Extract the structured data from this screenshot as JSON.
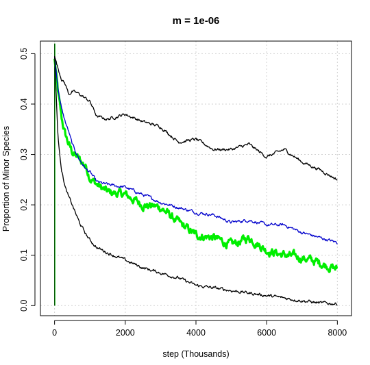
{
  "chart_data": {
    "type": "line",
    "title": "m = 1e-06",
    "xlabel": "step (Thousands)",
    "ylabel": "Proportion of Minor Species",
    "xlim": [
      -400,
      8400
    ],
    "ylim": [
      -0.02,
      0.525
    ],
    "xticks": [
      0,
      2000,
      4000,
      6000,
      8000
    ],
    "xtick_labels": [
      "0",
      "2000",
      "4000",
      "6000",
      "8000"
    ],
    "yticks": [
      0.0,
      0.1,
      0.2,
      0.3,
      0.4,
      0.5
    ],
    "ytick_labels": [
      "0.0",
      "0.1",
      "0.2",
      "0.3",
      "0.4",
      "0.5"
    ],
    "grid": true,
    "initial_vertical_line": {
      "x": 0,
      "y_range": [
        0,
        0.52
      ],
      "colors": [
        "#000000",
        "#00aa00"
      ]
    },
    "series": [
      {
        "color": "#000000",
        "x": [
          0,
          100,
          200,
          300,
          400,
          500,
          700,
          900,
          1000,
          1200,
          1500,
          2000,
          2500,
          3000,
          3500,
          4000,
          4500,
          5000,
          5500,
          6000,
          6500,
          7000,
          7500,
          8000
        ],
        "values": [
          0.495,
          0.47,
          0.45,
          0.44,
          0.42,
          0.425,
          0.42,
          0.41,
          0.405,
          0.375,
          0.37,
          0.38,
          0.365,
          0.355,
          0.325,
          0.33,
          0.31,
          0.31,
          0.32,
          0.295,
          0.31,
          0.285,
          0.27,
          0.25
        ]
      },
      {
        "color": "#0000cc",
        "x": [
          0,
          100,
          200,
          300,
          400,
          500,
          700,
          900,
          1000,
          1200,
          1500,
          2000,
          2500,
          3000,
          3500,
          4000,
          4500,
          5000,
          5500,
          6000,
          6500,
          7000,
          7500,
          8000
        ],
        "values": [
          0.495,
          0.43,
          0.39,
          0.365,
          0.345,
          0.32,
          0.29,
          0.27,
          0.265,
          0.245,
          0.24,
          0.235,
          0.22,
          0.205,
          0.195,
          0.185,
          0.18,
          0.165,
          0.17,
          0.16,
          0.16,
          0.145,
          0.135,
          0.125
        ]
      },
      {
        "color": "#00ee00",
        "x": [
          0,
          100,
          200,
          300,
          400,
          500,
          700,
          900,
          1000,
          1200,
          1500,
          2000,
          2500,
          3000,
          3500,
          4000,
          4500,
          5000,
          5500,
          6000,
          6500,
          7000,
          7500,
          8000
        ],
        "values": [
          0.49,
          0.42,
          0.37,
          0.34,
          0.32,
          0.305,
          0.29,
          0.275,
          0.255,
          0.24,
          0.225,
          0.22,
          0.2,
          0.195,
          0.165,
          0.14,
          0.135,
          0.12,
          0.135,
          0.11,
          0.1,
          0.095,
          0.085,
          0.072
        ]
      },
      {
        "color": "#000000",
        "x": [
          0,
          100,
          200,
          300,
          400,
          500,
          700,
          900,
          1000,
          1200,
          1500,
          2000,
          2500,
          3000,
          3500,
          4000,
          4500,
          5000,
          5500,
          6000,
          6500,
          7000,
          7500,
          8000
        ],
        "values": [
          0.495,
          0.33,
          0.27,
          0.235,
          0.215,
          0.2,
          0.165,
          0.14,
          0.13,
          0.115,
          0.105,
          0.09,
          0.075,
          0.065,
          0.055,
          0.04,
          0.035,
          0.03,
          0.025,
          0.02,
          0.015,
          0.01,
          0.005,
          0.004
        ]
      }
    ]
  }
}
